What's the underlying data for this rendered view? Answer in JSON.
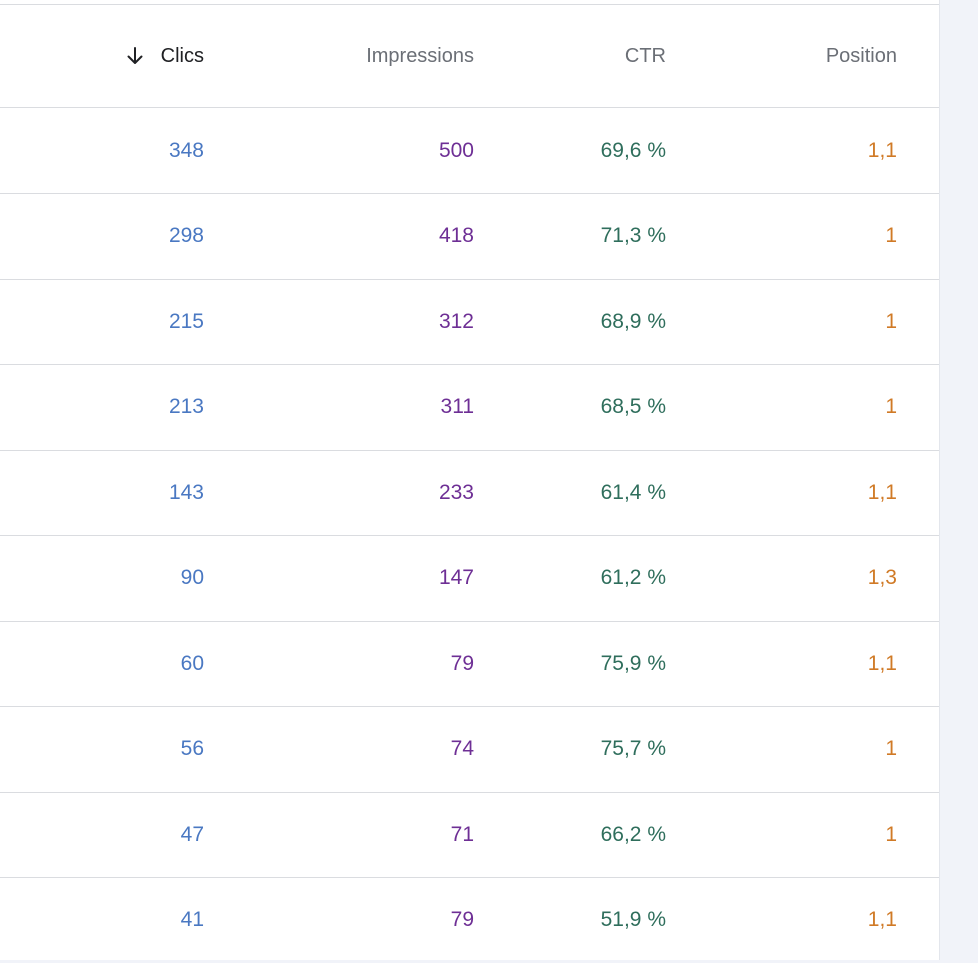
{
  "header": {
    "clicks": "Clics",
    "impressions": "Impressions",
    "ctr": "CTR",
    "position": "Position",
    "sort_icon": "arrow-down-icon"
  },
  "colors": {
    "clicks": "#4a78c2",
    "impressions": "#6e2f95",
    "ctr": "#2f6e5c",
    "position": "#d07a26"
  },
  "rows": [
    {
      "clicks": "348",
      "impressions": "500",
      "ctr": "69,6 %",
      "position": "1,1"
    },
    {
      "clicks": "298",
      "impressions": "418",
      "ctr": "71,3 %",
      "position": "1"
    },
    {
      "clicks": "215",
      "impressions": "312",
      "ctr": "68,9 %",
      "position": "1"
    },
    {
      "clicks": "213",
      "impressions": "311",
      "ctr": "68,5 %",
      "position": "1"
    },
    {
      "clicks": "143",
      "impressions": "233",
      "ctr": "61,4 %",
      "position": "1,1"
    },
    {
      "clicks": "90",
      "impressions": "147",
      "ctr": "61,2 %",
      "position": "1,3"
    },
    {
      "clicks": "60",
      "impressions": "79",
      "ctr": "75,9 %",
      "position": "1,1"
    },
    {
      "clicks": "56",
      "impressions": "74",
      "ctr": "75,7 %",
      "position": "1"
    },
    {
      "clicks": "47",
      "impressions": "71",
      "ctr": "66,2 %",
      "position": "1"
    },
    {
      "clicks": "41",
      "impressions": "79",
      "ctr": "51,9 %",
      "position": "1,1"
    }
  ]
}
